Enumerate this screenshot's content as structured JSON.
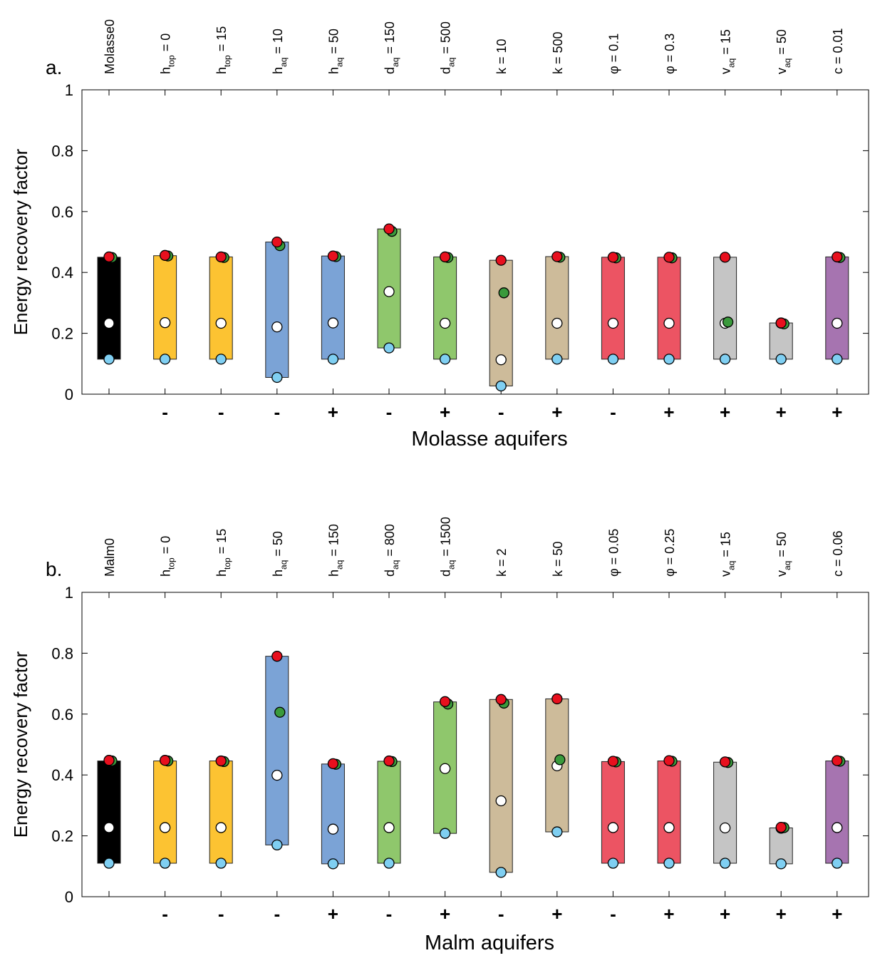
{
  "chart_data": [
    {
      "type": "bar",
      "panel_label": "a.",
      "xlabel": "Molasse aquifers",
      "ylabel": "Energy recovery factor",
      "ylim": [
        0,
        1
      ],
      "yticks": [
        "0",
        "0.2",
        "0.4",
        "0.6",
        "0.8",
        "1"
      ],
      "categories": [
        {
          "base": "Molasse0",
          "sub": "",
          "rest": ""
        },
        {
          "base": "h",
          "sub": "top",
          "rest": " = 0"
        },
        {
          "base": "h",
          "sub": "top",
          "rest": " = 15"
        },
        {
          "base": "h",
          "sub": "aq",
          "rest": " = 10"
        },
        {
          "base": "h",
          "sub": "aq",
          "rest": " = 50"
        },
        {
          "base": "d",
          "sub": "aq",
          "rest": " = 150"
        },
        {
          "base": "d",
          "sub": "aq",
          "rest": " = 500"
        },
        {
          "base": "k = 10",
          "sub": "",
          "rest": ""
        },
        {
          "base": "k = 500",
          "sub": "",
          "rest": ""
        },
        {
          "base": "φ = 0.1",
          "sub": "",
          "rest": ""
        },
        {
          "base": "φ = 0.3",
          "sub": "",
          "rest": ""
        },
        {
          "base": "v",
          "sub": "aq",
          "rest": " = 15"
        },
        {
          "base": "v",
          "sub": "aq",
          "rest": " = 50"
        },
        {
          "base": "c = 0.01",
          "sub": "",
          "rest": ""
        }
      ],
      "signs": [
        "",
        "-",
        "-",
        "-",
        "+",
        "-",
        "+",
        "-",
        "+",
        "-",
        "+",
        "+",
        "+",
        "+"
      ],
      "bar_colors": [
        "#000000",
        "#FCC332",
        "#FCC332",
        "#7BA3D6",
        "#7BA3D6",
        "#8FC76C",
        "#8FC76C",
        "#CDBB9A",
        "#CDBB9A",
        "#EC5463",
        "#EC5463",
        "#C5C5C5",
        "#C5C5C5",
        "#A674B0"
      ],
      "bar_low": [
        0.115,
        0.115,
        0.115,
        0.055,
        0.115,
        0.152,
        0.115,
        0.027,
        0.115,
        0.115,
        0.115,
        0.115,
        0.115,
        0.115
      ],
      "bar_high": [
        0.45,
        0.455,
        0.451,
        0.5,
        0.454,
        0.543,
        0.451,
        0.44,
        0.452,
        0.45,
        0.45,
        0.45,
        0.234,
        0.451
      ],
      "series": [
        {
          "color": "#E8101E",
          "values": [
            0.451,
            0.456,
            0.451,
            0.5,
            0.454,
            0.543,
            0.451,
            0.44,
            0.452,
            0.45,
            0.45,
            0.45,
            0.234,
            0.451
          ]
        },
        {
          "color": "#3A9A3C",
          "values": [
            0.449,
            0.454,
            0.449,
            0.488,
            0.452,
            0.535,
            0.449,
            0.333,
            0.45,
            0.448,
            0.448,
            0.237,
            0.231,
            0.449
          ]
        },
        {
          "color": "#FFFFFF",
          "values": [
            0.233,
            0.235,
            0.233,
            0.221,
            0.234,
            0.337,
            0.233,
            0.113,
            0.233,
            0.233,
            0.233,
            0.233,
            0.233,
            0.233
          ]
        },
        {
          "color": "#7FCFF2",
          "values": [
            0.115,
            0.115,
            0.115,
            0.055,
            0.115,
            0.152,
            0.115,
            0.027,
            0.115,
            0.115,
            0.115,
            0.115,
            0.115,
            0.115
          ]
        }
      ]
    },
    {
      "type": "bar",
      "panel_label": "b.",
      "xlabel": "Malm aquifers",
      "ylabel": "Energy recovery factor",
      "ylim": [
        0,
        1
      ],
      "yticks": [
        "0",
        "0.2",
        "0.4",
        "0.6",
        "0.8",
        "1"
      ],
      "categories": [
        {
          "base": "Malm0",
          "sub": "",
          "rest": ""
        },
        {
          "base": "h",
          "sub": "top",
          "rest": " = 0"
        },
        {
          "base": "h",
          "sub": "top",
          "rest": " = 15"
        },
        {
          "base": "h",
          "sub": "aq",
          "rest": " = 50"
        },
        {
          "base": "h",
          "sub": "aq",
          "rest": " = 150"
        },
        {
          "base": "d",
          "sub": "aq",
          "rest": " = 800"
        },
        {
          "base": "d",
          "sub": "aq",
          "rest": " = 1500"
        },
        {
          "base": "k = 2",
          "sub": "",
          "rest": ""
        },
        {
          "base": "k = 50",
          "sub": "",
          "rest": ""
        },
        {
          "base": "φ = 0.05",
          "sub": "",
          "rest": ""
        },
        {
          "base": "φ = 0.25",
          "sub": "",
          "rest": ""
        },
        {
          "base": "v",
          "sub": "aq",
          "rest": " = 15"
        },
        {
          "base": "v",
          "sub": "aq",
          "rest": " = 50"
        },
        {
          "base": "c = 0.06",
          "sub": "",
          "rest": ""
        }
      ],
      "signs": [
        "",
        "-",
        "-",
        "-",
        "+",
        "-",
        "+",
        "-",
        "+",
        "-",
        "+",
        "+",
        "+",
        "+"
      ],
      "bar_colors": [
        "#000000",
        "#FCC332",
        "#FCC332",
        "#7BA3D6",
        "#7BA3D6",
        "#8FC76C",
        "#8FC76C",
        "#CDBB9A",
        "#CDBB9A",
        "#EC5463",
        "#EC5463",
        "#C5C5C5",
        "#C5C5C5",
        "#A674B0"
      ],
      "bar_low": [
        0.11,
        0.11,
        0.11,
        0.17,
        0.108,
        0.11,
        0.208,
        0.08,
        0.213,
        0.11,
        0.11,
        0.11,
        0.108,
        0.11
      ],
      "bar_high": [
        0.446,
        0.446,
        0.446,
        0.79,
        0.436,
        0.445,
        0.64,
        0.648,
        0.65,
        0.444,
        0.446,
        0.442,
        0.226,
        0.446
      ],
      "series": [
        {
          "color": "#E8101E",
          "values": [
            0.448,
            0.448,
            0.446,
            0.79,
            0.437,
            0.446,
            0.641,
            0.648,
            0.65,
            0.445,
            0.447,
            0.443,
            0.228,
            0.447
          ]
        },
        {
          "color": "#3A9A3C",
          "values": [
            0.446,
            0.446,
            0.444,
            0.606,
            0.435,
            0.444,
            0.633,
            0.636,
            0.45,
            0.443,
            0.445,
            0.441,
            0.227,
            0.445
          ]
        },
        {
          "color": "#FFFFFF",
          "values": [
            0.227,
            0.227,
            0.227,
            0.399,
            0.222,
            0.227,
            0.421,
            0.315,
            0.43,
            0.227,
            0.227,
            0.226,
            0.225,
            0.227
          ]
        },
        {
          "color": "#7FCFF2",
          "values": [
            0.11,
            0.11,
            0.11,
            0.17,
            0.108,
            0.11,
            0.208,
            0.08,
            0.213,
            0.11,
            0.11,
            0.11,
            0.108,
            0.11
          ]
        }
      ]
    }
  ]
}
